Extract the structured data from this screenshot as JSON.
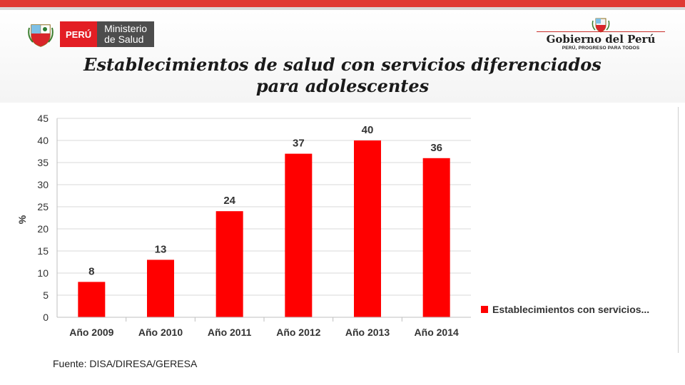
{
  "header": {
    "minsa_peru": "PERÚ",
    "minsa_line1": "Ministerio",
    "minsa_line2": "de Salud",
    "gob_title": "Gobierno del Perú",
    "gob_tagline": "PERÚ, PROGRESO PARA TODOS"
  },
  "title_line1": "Establecimientos de salud con servicios diferenciados",
  "title_line2": "para adolescentes",
  "source": "Fuente: DISA/DIRESA/GERESA",
  "colors": {
    "bar": "#ff0000",
    "accent": "#e03a33",
    "grid": "#d9d9d9"
  },
  "chart_data": {
    "type": "bar",
    "categories": [
      "Año 2009",
      "Año 2010",
      "Año 2011",
      "Año 2012",
      "Año 2013",
      "Año 2014"
    ],
    "series": [
      {
        "name": "Establecimientos con servicios...",
        "values": [
          8,
          13,
          24,
          37,
          40,
          36
        ]
      }
    ],
    "ylabel": "%",
    "ylim": [
      0,
      45
    ],
    "yticks": [
      0,
      5,
      10,
      15,
      20,
      25,
      30,
      35,
      40,
      45
    ],
    "grid": true,
    "legend": "right",
    "data_labels": true
  }
}
